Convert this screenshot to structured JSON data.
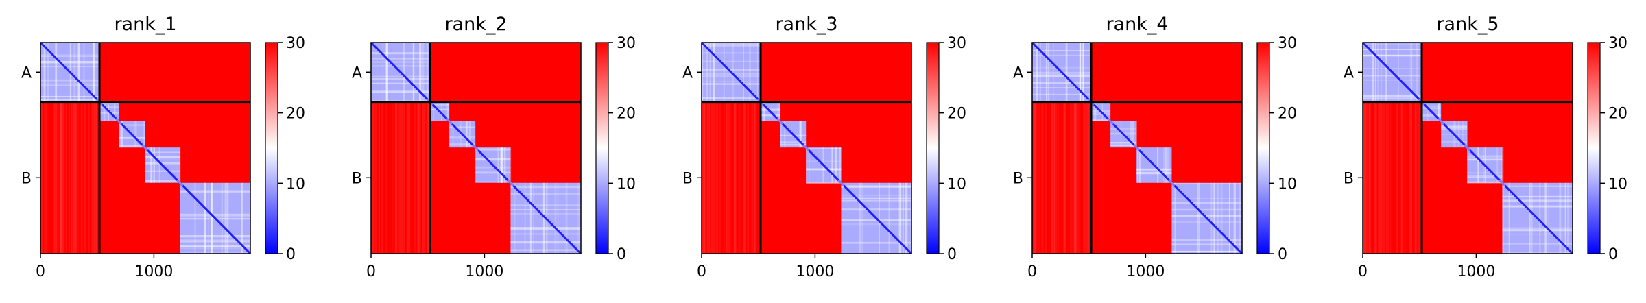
{
  "figure": {
    "description": "",
    "panel_titles": [
      "rank_1",
      "rank_2",
      "rank_3",
      "rank_4",
      "rank_5"
    ]
  },
  "colors": {
    "low": "#0000ff",
    "mid": "#ffffff",
    "high": "#ff0000",
    "divider": "#000000"
  },
  "chart_data": [
    {
      "type": "heatmap",
      "title": "rank_1",
      "x_ticks": [
        {
          "value": 0,
          "label": "0"
        },
        {
          "value": 1000,
          "label": "1000"
        }
      ],
      "x_range": [
        0,
        1850
      ],
      "y_ticks": [
        {
          "label": "A"
        },
        {
          "label": "B"
        }
      ],
      "chains": [
        {
          "name": "A",
          "start": 0,
          "end": 520
        },
        {
          "name": "B",
          "start": 520,
          "end": 1850
        }
      ],
      "domains": [
        [
          0,
          520
        ],
        [
          520,
          690
        ],
        [
          690,
          920
        ],
        [
          920,
          1230
        ],
        [
          1230,
          1850
        ]
      ],
      "colorbar": {
        "min": 0,
        "max": 30,
        "ticks": [
          0,
          10,
          20,
          30
        ],
        "labels": [
          "0",
          "10",
          "20",
          "30"
        ],
        "colormap": "bwr"
      },
      "interchain_value": 30,
      "intradomain_value": 6
    },
    {
      "type": "heatmap",
      "title": "rank_2",
      "x_ticks": [
        {
          "value": 0,
          "label": "0"
        },
        {
          "value": 1000,
          "label": "1000"
        }
      ],
      "x_range": [
        0,
        1850
      ],
      "y_ticks": [
        {
          "label": "A"
        },
        {
          "label": "B"
        }
      ],
      "chains": [
        {
          "name": "A",
          "start": 0,
          "end": 520
        },
        {
          "name": "B",
          "start": 520,
          "end": 1850
        }
      ],
      "domains": [
        [
          0,
          520
        ],
        [
          520,
          690
        ],
        [
          690,
          920
        ],
        [
          920,
          1230
        ],
        [
          1230,
          1850
        ]
      ],
      "colorbar": {
        "min": 0,
        "max": 30,
        "ticks": [
          0,
          10,
          20,
          30
        ],
        "labels": [
          "0",
          "10",
          "20",
          "30"
        ],
        "colormap": "bwr"
      },
      "interchain_value": 30,
      "intradomain_value": 6
    },
    {
      "type": "heatmap",
      "title": "rank_3",
      "x_ticks": [
        {
          "value": 0,
          "label": "0"
        },
        {
          "value": 1000,
          "label": "1000"
        }
      ],
      "x_range": [
        0,
        1850
      ],
      "y_ticks": [
        {
          "label": "A"
        },
        {
          "label": "B"
        }
      ],
      "chains": [
        {
          "name": "A",
          "start": 0,
          "end": 520
        },
        {
          "name": "B",
          "start": 520,
          "end": 1850
        }
      ],
      "domains": [
        [
          0,
          520
        ],
        [
          520,
          690
        ],
        [
          690,
          920
        ],
        [
          920,
          1230
        ],
        [
          1230,
          1850
        ]
      ],
      "colorbar": {
        "min": 0,
        "max": 30,
        "ticks": [
          0,
          10,
          20,
          30
        ],
        "labels": [
          "0",
          "10",
          "20",
          "30"
        ],
        "colormap": "bwr"
      },
      "interchain_value": 30,
      "intradomain_value": 6
    },
    {
      "type": "heatmap",
      "title": "rank_4",
      "x_ticks": [
        {
          "value": 0,
          "label": "0"
        },
        {
          "value": 1000,
          "label": "1000"
        }
      ],
      "x_range": [
        0,
        1850
      ],
      "y_ticks": [
        {
          "label": "A"
        },
        {
          "label": "B"
        }
      ],
      "chains": [
        {
          "name": "A",
          "start": 0,
          "end": 520
        },
        {
          "name": "B",
          "start": 520,
          "end": 1850
        }
      ],
      "domains": [
        [
          0,
          520
        ],
        [
          520,
          690
        ],
        [
          690,
          920
        ],
        [
          920,
          1230
        ],
        [
          1230,
          1850
        ]
      ],
      "colorbar": {
        "min": 0,
        "max": 30,
        "ticks": [
          0,
          10,
          20,
          30
        ],
        "labels": [
          "0",
          "10",
          "20",
          "30"
        ],
        "colormap": "bwr"
      },
      "interchain_value": 30,
      "intradomain_value": 6
    },
    {
      "type": "heatmap",
      "title": "rank_5",
      "x_ticks": [
        {
          "value": 0,
          "label": "0"
        },
        {
          "value": 1000,
          "label": "1000"
        }
      ],
      "x_range": [
        0,
        1850
      ],
      "y_ticks": [
        {
          "label": "A"
        },
        {
          "label": "B"
        }
      ],
      "chains": [
        {
          "name": "A",
          "start": 0,
          "end": 520
        },
        {
          "name": "B",
          "start": 520,
          "end": 1850
        }
      ],
      "domains": [
        [
          0,
          520
        ],
        [
          520,
          690
        ],
        [
          690,
          920
        ],
        [
          920,
          1230
        ],
        [
          1230,
          1850
        ]
      ],
      "colorbar": {
        "min": 0,
        "max": 30,
        "ticks": [
          0,
          10,
          20,
          30
        ],
        "labels": [
          "0",
          "10",
          "20",
          "30"
        ],
        "colormap": "bwr"
      },
      "interchain_value": 30,
      "intradomain_value": 6
    }
  ]
}
